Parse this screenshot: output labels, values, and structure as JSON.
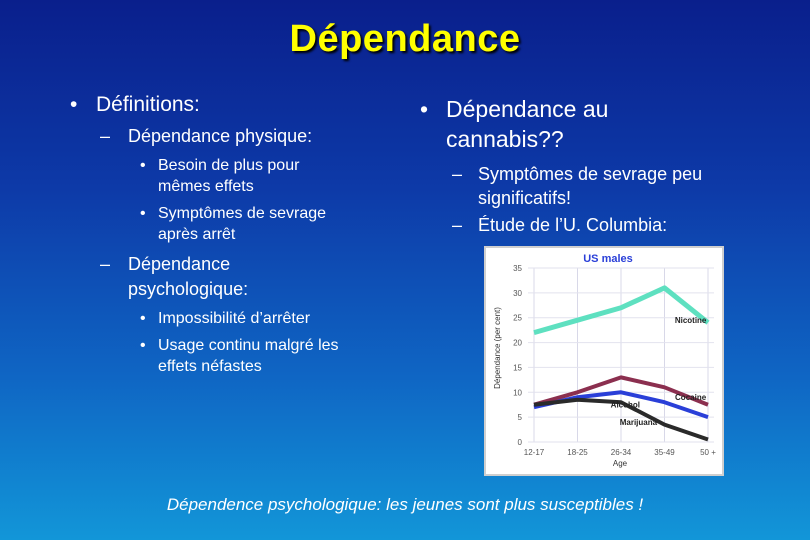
{
  "slide": {
    "title": "Dépendance",
    "left": {
      "bullet": "Définitions:",
      "physique": {
        "heading": "Dépendance physique:",
        "items": [
          [
            "Besoin de plus pour",
            "mêmes effets"
          ],
          [
            "Symptômes de sevrage",
            "après arrêt"
          ]
        ]
      },
      "psycho": {
        "heading_lines": [
          "Dépendance",
          "psychologique:"
        ],
        "items": [
          [
            "Impossibilité d’arrêter"
          ],
          [
            "Usage continu malgré les",
            "effets néfastes"
          ]
        ]
      }
    },
    "right": {
      "bullet_lines": [
        "Dépendance au",
        "cannabis??"
      ],
      "sub_items": [
        [
          "Symptômes de sevrage peu",
          "significatifs!"
        ],
        [
          "Étude de l’U. Columbia:"
        ]
      ]
    },
    "footer": "Dépendence psychologique: les jeunes sont plus susceptibles !"
  },
  "colors": {
    "title": "#ffff00",
    "nicotine": "#5ee0c0",
    "cocaine": "#8b2f4f",
    "alcohol": "#2a3fd8",
    "marijuana": "#2a2a2a"
  },
  "chart_data": {
    "type": "line",
    "title": "US males",
    "xlabel": "Age",
    "ylabel": "Dépendance (per cent)",
    "categories": [
      "12-17",
      "18-25",
      "26-34",
      "35-49",
      "50 +"
    ],
    "ylim": [
      0,
      35
    ],
    "yticks": [
      "0",
      "5",
      "10",
      "15",
      "20",
      "25",
      "30",
      "35"
    ],
    "grid": true,
    "series": [
      {
        "name": "Nicotine",
        "values": [
          22,
          24.5,
          27,
          31,
          24
        ]
      },
      {
        "name": "Cocaine",
        "values": [
          7.5,
          10,
          13,
          11,
          7.5
        ]
      },
      {
        "name": "Alcohol",
        "values": [
          7,
          9,
          10,
          8,
          5
        ]
      },
      {
        "name": "Marijuana",
        "values": [
          7.5,
          8.5,
          8,
          3.5,
          0.5
        ]
      }
    ]
  }
}
